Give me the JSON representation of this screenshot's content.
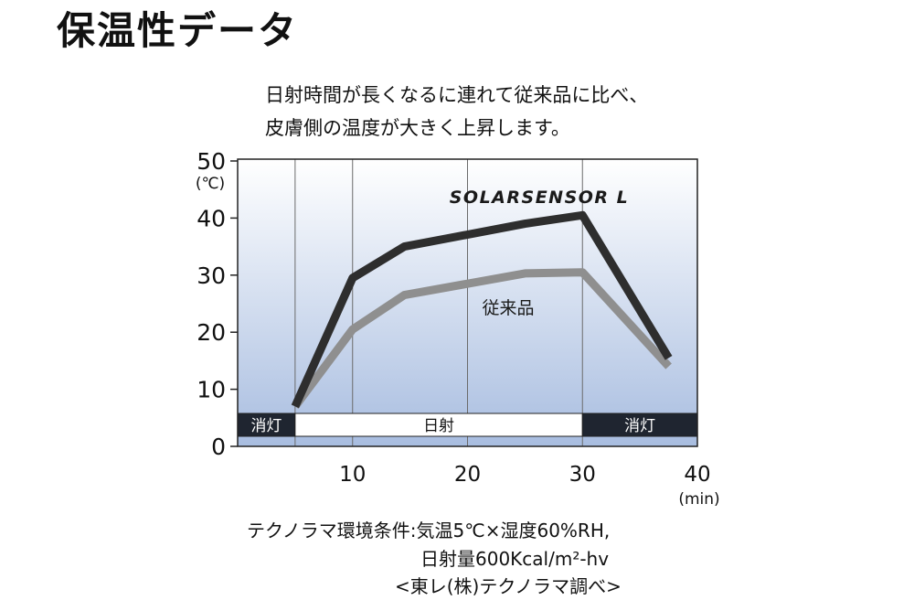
{
  "header": {
    "title": "保温性データ"
  },
  "caption": {
    "line1": "日射時間が長くなるに連れて従来品に比べ、",
    "line2": "皮膚側の温度が大きく上昇します。"
  },
  "chart_data": {
    "type": "line",
    "title": "",
    "xlabel": "(min)",
    "ylabel": "(℃)",
    "xlim": [
      0,
      40
    ],
    "ylim": [
      0,
      50
    ],
    "xticks": [
      10,
      20,
      30,
      40
    ],
    "yticks": [
      0,
      10,
      20,
      30,
      40,
      50
    ],
    "grid": true,
    "series": [
      {
        "name": "SOLARSENSOR L",
        "color": "#2e2e2e",
        "x": [
          5,
          10,
          14.5,
          25,
          30,
          37.5
        ],
        "y": [
          7,
          29.5,
          35,
          39,
          40.5,
          15.5
        ]
      },
      {
        "name": "従来品",
        "color": "#8f8f8f",
        "x": [
          5,
          10,
          14.5,
          25,
          30,
          37.5
        ],
        "y": [
          7,
          20.5,
          26.5,
          30.3,
          30.5,
          14
        ]
      }
    ],
    "phases": [
      {
        "label": "消灯",
        "start": 0,
        "end": 5,
        "kind": "off"
      },
      {
        "label": "日射",
        "start": 5,
        "end": 30,
        "kind": "on"
      },
      {
        "label": "消灯",
        "start": 30,
        "end": 40,
        "kind": "off"
      }
    ]
  },
  "notes": {
    "line1": "テクノラマ環境条件:気温5℃×湿度60%RH,",
    "line2": "日射量600Kcal/m²-hv",
    "line3": "<東レ(株)テクノラマ調べ>"
  },
  "colors": {
    "plot_bg_top": "#ffffff",
    "plot_bg_bottom": "#a8bde0",
    "phase_off": "#1f2530",
    "phase_on": "#ffffff"
  }
}
